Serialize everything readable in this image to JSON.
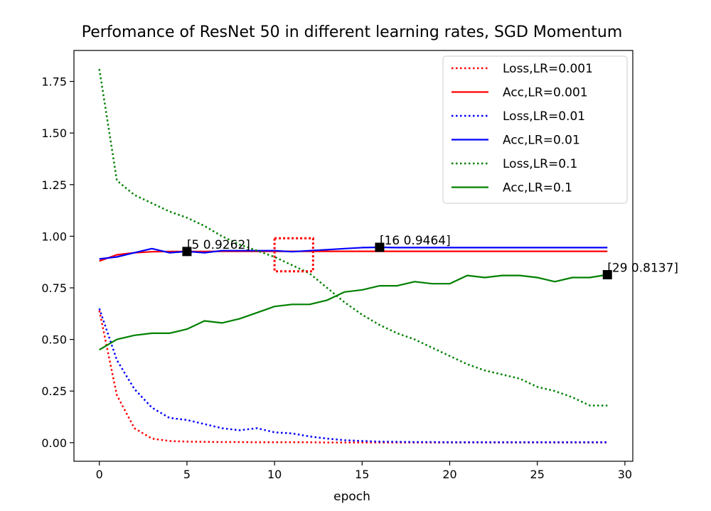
{
  "chart_data": {
    "type": "line",
    "title": "Perfomance of ResNet 50 in different learning rates, SGD Momentum",
    "xlabel": "epoch",
    "ylabel": "",
    "xlim": [
      -1.45,
      30.45
    ],
    "ylim": [
      -0.09,
      1.9
    ],
    "xticks": [
      0,
      5,
      10,
      15,
      20,
      25,
      30
    ],
    "yticks": [
      0.0,
      0.25,
      0.5,
      0.75,
      1.0,
      1.25,
      1.5,
      1.75
    ],
    "ytick_labels": [
      "0.00",
      "0.25",
      "0.50",
      "0.75",
      "1.00",
      "1.25",
      "1.50",
      "1.75"
    ],
    "grid": false,
    "legend_position": "top-right",
    "x": [
      0,
      1,
      2,
      3,
      4,
      5,
      6,
      7,
      8,
      9,
      10,
      11,
      12,
      13,
      14,
      15,
      16,
      17,
      18,
      19,
      20,
      21,
      22,
      23,
      24,
      25,
      26,
      27,
      28,
      29
    ],
    "series": [
      {
        "name": "Loss,LR=0.001",
        "color": "#ff0000",
        "style": "dotted",
        "values": [
          0.64,
          0.23,
          0.07,
          0.02,
          0.008,
          0.005,
          0.004,
          0.003,
          0.003,
          0.002,
          0.002,
          0.002,
          0.002,
          0.001,
          0.001,
          0.001,
          0.001,
          0.001,
          0.001,
          0.001,
          0.001,
          0.001,
          0.001,
          0.001,
          0.001,
          0.001,
          0.001,
          0.001,
          0.001,
          0.001
        ]
      },
      {
        "name": "Acc,LR=0.001",
        "color": "#ff0000",
        "style": "solid",
        "values": [
          0.88,
          0.91,
          0.92,
          0.925,
          0.926,
          0.926,
          0.926,
          0.927,
          0.927,
          0.927,
          0.927,
          0.927,
          0.927,
          0.927,
          0.927,
          0.927,
          0.927,
          0.927,
          0.927,
          0.927,
          0.927,
          0.927,
          0.927,
          0.927,
          0.927,
          0.927,
          0.927,
          0.927,
          0.927,
          0.927
        ]
      },
      {
        "name": "Loss,LR=0.01",
        "color": "#0000ff",
        "style": "dotted",
        "values": [
          0.65,
          0.4,
          0.26,
          0.17,
          0.12,
          0.11,
          0.09,
          0.07,
          0.06,
          0.07,
          0.05,
          0.045,
          0.03,
          0.02,
          0.012,
          0.008,
          0.005,
          0.004,
          0.003,
          0.003,
          0.002,
          0.002,
          0.002,
          0.002,
          0.002,
          0.002,
          0.002,
          0.002,
          0.002,
          0.002
        ]
      },
      {
        "name": "Acc,LR=0.01",
        "color": "#0000ff",
        "style": "solid",
        "values": [
          0.89,
          0.9,
          0.92,
          0.94,
          0.92,
          0.9262,
          0.92,
          0.93,
          0.93,
          0.93,
          0.93,
          0.925,
          0.93,
          0.935,
          0.94,
          0.945,
          0.9464,
          0.945,
          0.945,
          0.945,
          0.945,
          0.945,
          0.945,
          0.945,
          0.945,
          0.945,
          0.945,
          0.945,
          0.945,
          0.945
        ]
      },
      {
        "name": "Loss,LR=0.1",
        "color": "#008000",
        "style": "dotted",
        "values": [
          1.81,
          1.27,
          1.2,
          1.16,
          1.12,
          1.09,
          1.05,
          1.0,
          0.96,
          0.93,
          0.9,
          0.86,
          0.82,
          0.75,
          0.68,
          0.62,
          0.57,
          0.53,
          0.5,
          0.46,
          0.42,
          0.38,
          0.35,
          0.33,
          0.31,
          0.27,
          0.25,
          0.22,
          0.18,
          0.18
        ]
      },
      {
        "name": "Acc,LR=0.1",
        "color": "#008000",
        "style": "solid",
        "values": [
          0.45,
          0.5,
          0.52,
          0.53,
          0.53,
          0.55,
          0.59,
          0.58,
          0.6,
          0.63,
          0.66,
          0.67,
          0.67,
          0.69,
          0.73,
          0.74,
          0.76,
          0.76,
          0.78,
          0.77,
          0.77,
          0.81,
          0.8,
          0.81,
          0.81,
          0.8,
          0.78,
          0.8,
          0.8,
          0.8137
        ]
      }
    ],
    "annotations": [
      {
        "x": 5,
        "y": 0.9262,
        "label": "[5 0.9262]"
      },
      {
        "x": 16,
        "y": 0.9464,
        "label": "[16 0.9464]"
      },
      {
        "x": 29,
        "y": 0.8137,
        "label": "[29 0.8137]"
      }
    ],
    "highlight_box": {
      "x0": 10,
      "x1": 12.2,
      "y0": 0.83,
      "y1": 0.99,
      "color": "#ff0000",
      "style": "dotted"
    }
  }
}
